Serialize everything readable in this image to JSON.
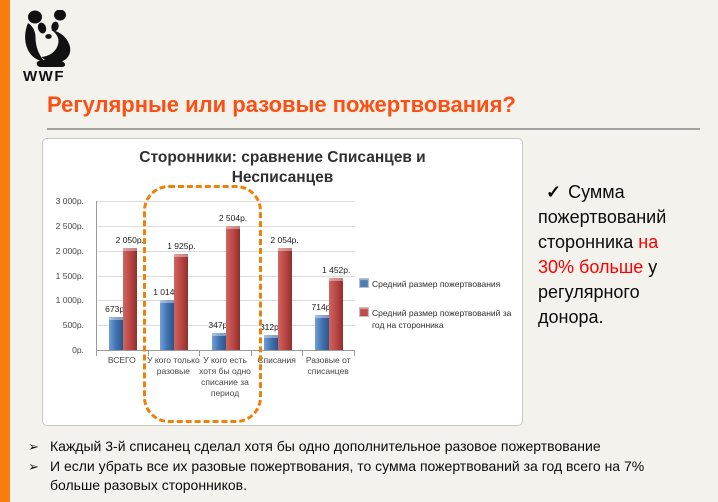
{
  "theme": {
    "background": "#F4F2EC",
    "accent_orange": "#F87D0E",
    "title_color": "#FB4F14",
    "red_text": "#FF0000",
    "series1_blue": "#4A7EBB",
    "series2_red": "#BE4B48",
    "highlight_dash_color": "#F0800C"
  },
  "logo": {
    "text": "WWF"
  },
  "title": {
    "text": "Регулярные или разовые пожертвования?"
  },
  "chart_data": {
    "type": "bar",
    "title": "Сторонники: сравнение Списанцев и Несписанцев",
    "categories": [
      "ВСЕГО",
      "У кого только разовые",
      "У кого есть хотя бы одно списание за период",
      "Списания",
      "Разовые от списанцев"
    ],
    "series": [
      {
        "name": "Средний  размер пожертвования",
        "color": "#4A7EBB",
        "values": [
          673,
          1014,
          347,
          312,
          714
        ],
        "labels": [
          "673р.",
          "1 014р.",
          "347р.",
          "312р.",
          "714р."
        ]
      },
      {
        "name": "Средний  размер пожертвований за год на сторонника",
        "color": "#BE4B48",
        "values": [
          2050,
          1925,
          2504,
          2054,
          1452
        ],
        "labels": [
          "2 050р.",
          "1 925р.",
          "2 504р.",
          "2 054р.",
          "1 452р."
        ]
      }
    ],
    "y_ticks": [
      "3 000р.",
      "2 500р.",
      "2 000р.",
      "1 500р.",
      "1 000р.",
      "500р.",
      "0р."
    ],
    "ylim": [
      0,
      3000
    ],
    "grid": true,
    "legend_position": "right",
    "highlight": {
      "categories": [
        1,
        2
      ],
      "color": "#F0800C",
      "style": "orange-dashed-rounded"
    }
  },
  "callout": {
    "check": "✓",
    "segments": [
      {
        "text": "Сумма пожертвований сторонника ",
        "color": "#0b0b0b"
      },
      {
        "text": "на 30% больше",
        "color": "#FF0000"
      },
      {
        "text": " у регулярного донора.",
        "color": "#0b0b0b"
      }
    ]
  },
  "footnotes": {
    "bullet_glyph": "➢",
    "items": [
      "Каждый 3-й списанец сделал хотя бы одно дополнительное разовое пожертвование",
      "И если убрать все их разовые пожертвования, то сумма пожертвований за год всего на 7% больше разовых сторонников."
    ]
  }
}
